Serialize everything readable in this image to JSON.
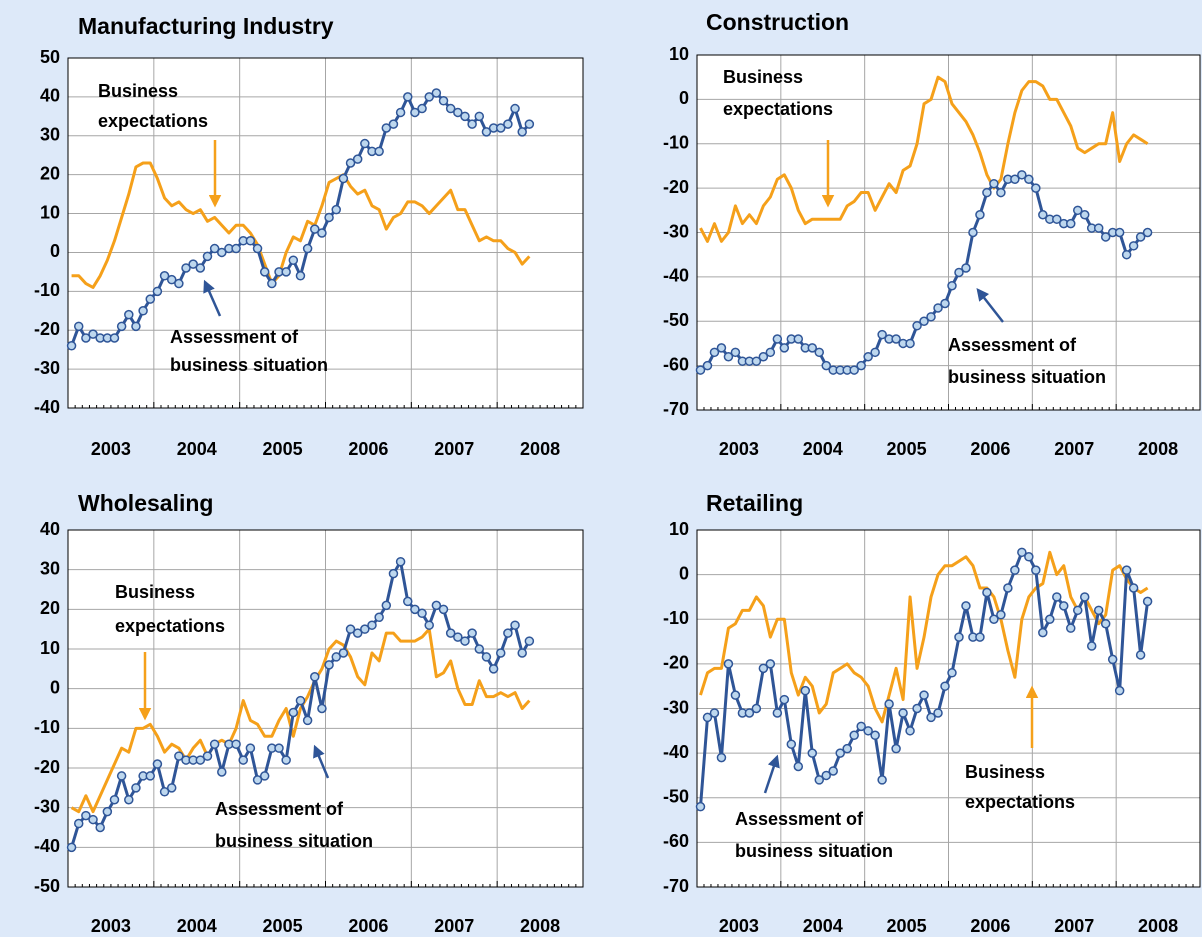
{
  "chart_data": [
    {
      "type": "line",
      "title": "Manufacturing Industry",
      "categories": [
        null,
        null,
        null,
        null,
        null,
        null,
        "2003",
        null,
        null,
        null,
        null,
        null,
        null,
        null,
        null,
        null,
        null,
        null,
        "2004",
        null,
        null,
        null,
        null,
        null,
        null,
        null,
        null,
        null,
        null,
        null,
        "2005",
        null,
        null,
        null,
        null,
        null,
        null,
        null,
        null,
        null,
        null,
        null,
        "2006",
        null,
        null,
        null,
        null,
        null,
        null,
        null,
        null,
        null,
        null,
        null,
        "2007",
        null,
        null,
        null,
        null,
        null,
        null,
        null,
        null,
        null,
        null,
        null,
        "2008",
        null,
        null,
        null,
        null,
        null
      ],
      "ylim": [
        -40,
        50
      ],
      "yticks": [
        -40,
        -30,
        -20,
        -10,
        0,
        10,
        20,
        30,
        40,
        50
      ],
      "grid": true,
      "series": [
        {
          "color": "#f5a01a",
          "markers": false,
          "values": [
            -6,
            -6,
            -8,
            -9,
            -6,
            -2,
            3,
            9,
            15,
            22,
            23,
            23,
            19,
            14,
            12,
            13,
            11,
            10,
            11,
            8,
            9,
            7,
            5,
            7,
            7,
            5,
            2,
            -3,
            -8,
            -6,
            0,
            4,
            3,
            8,
            7,
            12,
            18,
            19,
            20,
            17,
            15,
            16,
            12,
            11,
            6,
            9,
            10,
            13,
            13,
            12,
            10,
            12,
            14,
            16,
            11,
            11,
            7,
            3,
            4,
            3,
            3,
            1,
            0,
            -3,
            -1,
            null,
            null,
            null,
            null,
            null,
            null,
            null
          ]
        },
        {
          "color": "#2f5597",
          "markers": true,
          "values": [
            -24,
            -19,
            -22,
            -21,
            -22,
            -22,
            -22,
            -19,
            -16,
            -19,
            -15,
            -12,
            -10,
            -6,
            -7,
            -8,
            -4,
            -3,
            -4,
            -1,
            1,
            0,
            1,
            1,
            3,
            3,
            1,
            -5,
            -8,
            -5,
            -5,
            -2,
            -6,
            1,
            6,
            5,
            9,
            11,
            19,
            23,
            24,
            28,
            26,
            26,
            32,
            33,
            36,
            40,
            36,
            37,
            40,
            41,
            39,
            37,
            36,
            35,
            33,
            35,
            31,
            32,
            32,
            33,
            37,
            31,
            33,
            null,
            null,
            null,
            null,
            null,
            null,
            null
          ]
        }
      ],
      "annotations": [
        {
          "text": [
            "Business",
            "expectations"
          ]
        },
        {
          "text": [
            "Assessment of",
            "business situation"
          ]
        }
      ]
    },
    {
      "type": "line",
      "title": "Construction",
      "categories": [
        null,
        null,
        null,
        null,
        null,
        null,
        "2003",
        null,
        null,
        null,
        null,
        null,
        null,
        null,
        null,
        null,
        null,
        null,
        "2004",
        null,
        null,
        null,
        null,
        null,
        null,
        null,
        null,
        null,
        null,
        null,
        "2005",
        null,
        null,
        null,
        null,
        null,
        null,
        null,
        null,
        null,
        null,
        null,
        "2006",
        null,
        null,
        null,
        null,
        null,
        null,
        null,
        null,
        null,
        null,
        null,
        "2007",
        null,
        null,
        null,
        null,
        null,
        null,
        null,
        null,
        null,
        null,
        null,
        "2008",
        null,
        null,
        null,
        null,
        null
      ],
      "ylim": [
        -70,
        10
      ],
      "yticks": [
        -70,
        -60,
        -50,
        -40,
        -30,
        -20,
        -10,
        0,
        10
      ],
      "grid": true,
      "series": [
        {
          "color": "#f5a01a",
          "markers": false,
          "values": [
            -29,
            -32,
            -28,
            -32,
            -30,
            -24,
            -28,
            -26,
            -28,
            -24,
            -22,
            -18,
            -17,
            -20,
            -25,
            -28,
            -27,
            -27,
            -27,
            -27,
            -27,
            -24,
            -23,
            -21,
            -21,
            -25,
            -22,
            -19,
            -21,
            -16,
            -15,
            -10,
            -1,
            0,
            5,
            4,
            -1,
            -3,
            -5,
            -8,
            -12,
            -17,
            -20,
            -18,
            -10,
            -3,
            2,
            4,
            4,
            3,
            0,
            0,
            -3,
            -6,
            -11,
            -12,
            -11,
            -10,
            -10,
            -3,
            -14,
            -10,
            -8,
            -9,
            -10,
            null,
            null,
            null,
            null,
            null,
            null,
            null
          ]
        },
        {
          "color": "#2f5597",
          "markers": true,
          "values": [
            -61,
            -60,
            -57,
            -56,
            -58,
            -57,
            -59,
            -59,
            -59,
            -58,
            -57,
            -54,
            -56,
            -54,
            -54,
            -56,
            -56,
            -57,
            -60,
            -61,
            -61,
            -61,
            -61,
            -60,
            -58,
            -57,
            -53,
            -54,
            -54,
            -55,
            -55,
            -51,
            -50,
            -49,
            -47,
            -46,
            -42,
            -39,
            -38,
            -30,
            -26,
            -21,
            -19,
            -21,
            -18,
            -18,
            -17,
            -18,
            -20,
            -26,
            -27,
            -27,
            -28,
            -28,
            -25,
            -26,
            -29,
            -29,
            -31,
            -30,
            -30,
            -35,
            -33,
            -31,
            -30,
            null,
            null,
            null,
            null,
            null,
            null,
            null
          ]
        }
      ],
      "annotations": [
        {
          "text": [
            "Business",
            "expectations"
          ]
        },
        {
          "text": [
            "Assessment of",
            "business situation"
          ]
        }
      ]
    },
    {
      "type": "line",
      "title": "Wholesaling",
      "categories": [
        null,
        null,
        null,
        null,
        null,
        null,
        "2003",
        null,
        null,
        null,
        null,
        null,
        null,
        null,
        null,
        null,
        null,
        null,
        "2004",
        null,
        null,
        null,
        null,
        null,
        null,
        null,
        null,
        null,
        null,
        null,
        "2005",
        null,
        null,
        null,
        null,
        null,
        null,
        null,
        null,
        null,
        null,
        null,
        "2006",
        null,
        null,
        null,
        null,
        null,
        null,
        null,
        null,
        null,
        null,
        null,
        "2007",
        null,
        null,
        null,
        null,
        null,
        null,
        null,
        null,
        null,
        null,
        null,
        "2008",
        null,
        null,
        null,
        null,
        null
      ],
      "ylim": [
        -50,
        40
      ],
      "yticks": [
        -50,
        -40,
        -30,
        -20,
        -10,
        0,
        10,
        20,
        30,
        40
      ],
      "grid": true,
      "series": [
        {
          "color": "#f5a01a",
          "markers": false,
          "values": [
            -30,
            -31,
            -27,
            -31,
            -27,
            -23,
            -19,
            -15,
            -16,
            -10,
            -10,
            -9,
            -12,
            -16,
            -14,
            -15,
            -18,
            -15,
            -13,
            -17,
            -14,
            -13,
            -14,
            -10,
            -3,
            -8,
            -9,
            -12,
            -12,
            -8,
            -5,
            -12,
            -5,
            -2,
            2,
            5,
            10,
            12,
            11,
            8,
            3,
            1,
            9,
            7,
            14,
            14,
            12,
            12,
            12,
            13,
            15,
            3,
            4,
            7,
            0,
            -4,
            -4,
            2,
            -2,
            -2,
            -1,
            -2,
            -1,
            -5,
            -3,
            null,
            null,
            null,
            null,
            null,
            null,
            null
          ]
        },
        {
          "color": "#2f5597",
          "markers": true,
          "values": [
            -40,
            -34,
            -32,
            -33,
            -35,
            -31,
            -28,
            -22,
            -28,
            -25,
            -22,
            -22,
            -19,
            -26,
            -25,
            -17,
            -18,
            -18,
            -18,
            -17,
            -14,
            -21,
            -14,
            -14,
            -18,
            -15,
            -23,
            -22,
            -15,
            -15,
            -18,
            -6,
            -3,
            -8,
            3,
            -5,
            6,
            8,
            9,
            15,
            14,
            15,
            16,
            18,
            21,
            29,
            32,
            22,
            20,
            19,
            16,
            21,
            20,
            14,
            13,
            12,
            14,
            10,
            8,
            5,
            9,
            14,
            16,
            9,
            12,
            null,
            null,
            null,
            null,
            null,
            null,
            null
          ]
        }
      ],
      "annotations": [
        {
          "text": [
            "Business",
            "expectations"
          ]
        },
        {
          "text": [
            "Assessment of",
            "business situation"
          ]
        }
      ]
    },
    {
      "type": "line",
      "title": "Retailing",
      "categories": [
        null,
        null,
        null,
        null,
        null,
        null,
        "2003",
        null,
        null,
        null,
        null,
        null,
        null,
        null,
        null,
        null,
        null,
        null,
        "2004",
        null,
        null,
        null,
        null,
        null,
        null,
        null,
        null,
        null,
        null,
        null,
        "2005",
        null,
        null,
        null,
        null,
        null,
        null,
        null,
        null,
        null,
        null,
        null,
        "2006",
        null,
        null,
        null,
        null,
        null,
        null,
        null,
        null,
        null,
        null,
        null,
        "2007",
        null,
        null,
        null,
        null,
        null,
        null,
        null,
        null,
        null,
        null,
        null,
        "2008",
        null,
        null,
        null,
        null,
        null
      ],
      "ylim": [
        -70,
        10
      ],
      "yticks": [
        -70,
        -60,
        -50,
        -40,
        -30,
        -20,
        -10,
        0,
        10
      ],
      "grid": true,
      "series": [
        {
          "color": "#f5a01a",
          "markers": false,
          "values": [
            -27,
            -22,
            -21,
            -21,
            -12,
            -11,
            -8,
            -8,
            -5,
            -7,
            -14,
            -10,
            -10,
            -22,
            -27,
            -23,
            -25,
            -31,
            -29,
            -22,
            -21,
            -20,
            -22,
            -23,
            -25,
            -30,
            -33,
            -27,
            -21,
            -28,
            -5,
            -21,
            -14,
            -5,
            0,
            2,
            2,
            3,
            4,
            2,
            -3,
            -3,
            -5,
            -10,
            -17,
            -23,
            -10,
            -5,
            -3,
            -2,
            5,
            0,
            2,
            -5,
            -8,
            -5,
            -8,
            -11,
            -9,
            1,
            2,
            -1,
            -3,
            -4,
            -3,
            null,
            null,
            null,
            null,
            null,
            null,
            null
          ]
        },
        {
          "color": "#2f5597",
          "markers": true,
          "values": [
            -52,
            -32,
            -31,
            -41,
            -20,
            -27,
            -31,
            -31,
            -30,
            -21,
            -20,
            -31,
            -28,
            -38,
            -43,
            -26,
            -40,
            -46,
            -45,
            -44,
            -40,
            -39,
            -36,
            -34,
            -35,
            -36,
            -46,
            -29,
            -39,
            -31,
            -35,
            -30,
            -27,
            -32,
            -31,
            -25,
            -22,
            -14,
            -7,
            -14,
            -14,
            -4,
            -10,
            -9,
            -3,
            1,
            5,
            4,
            1,
            -13,
            -10,
            -5,
            -7,
            -12,
            -8,
            -5,
            -16,
            -8,
            -11,
            -19,
            -26,
            1,
            -3,
            -18,
            -6,
            null,
            null,
            null,
            null,
            null,
            null,
            null
          ]
        }
      ],
      "annotations": [
        {
          "text": [
            "Business",
            "expectations"
          ]
        },
        {
          "text": [
            "Assessment of",
            "business situation"
          ]
        }
      ]
    }
  ]
}
